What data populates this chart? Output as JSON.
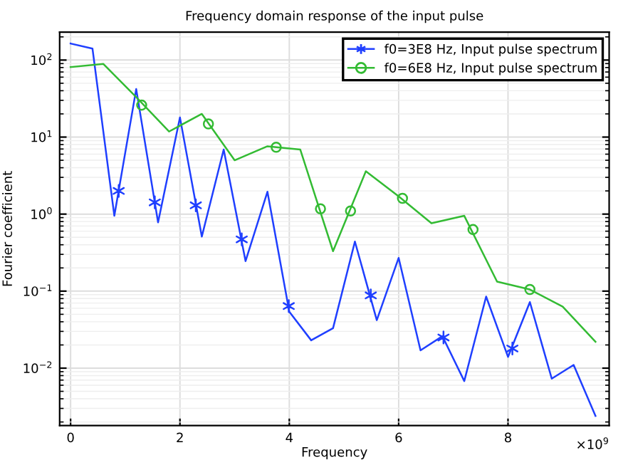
{
  "chart_data": {
    "type": "line",
    "title": "Frequency domain response of the input pulse",
    "xlabel": "Frequency",
    "ylabel": "Fourier coefficient",
    "log": "y",
    "grid": true,
    "legend": "top right",
    "xlim": [
      -0.2,
      9.85
    ],
    "xticks": [
      0,
      2,
      4,
      6,
      8
    ],
    "ylim": [
      0.0018,
      230
    ],
    "yticks": [
      {
        "value": 0.01,
        "label": "10$^{−2}$"
      },
      {
        "value": 0.1,
        "label": "10$^{−1}$"
      },
      {
        "value": 1,
        "label": "10$^{0}$"
      },
      {
        "value": 10,
        "label": "10$^{1}$"
      },
      {
        "value": 100,
        "label": "10$^{2}$"
      }
    ],
    "annotations": [
      "×10$^{9}$"
    ],
    "series": [
      {
        "name": "f0=3E8 Hz, Input pulse spectrum",
        "color": "#1f3fff",
        "x": [
          0,
          0.4,
          0.8,
          1.2,
          1.6,
          2.0,
          2.4,
          2.8,
          3.2,
          3.6,
          4.0,
          4.4,
          4.8,
          5.2,
          5.6,
          6.0,
          6.4,
          6.8,
          7.2,
          7.6,
          8.0,
          8.4,
          8.8,
          9.2,
          9.6
        ],
        "values": [
          164,
          141,
          0.95,
          42,
          0.78,
          18,
          0.51,
          6.9,
          0.245,
          1.95,
          0.054,
          0.023,
          0.033,
          0.44,
          0.042,
          0.27,
          0.017,
          0.026,
          0.0068,
          0.085,
          0.014,
          0.072,
          0.0073,
          0.011,
          0.0024
        ]
      },
      {
        "name": "f0=6E8 Hz, Input pulse spectrum",
        "color": "#33bb33",
        "x": [
          0,
          0.6,
          1.2,
          1.8,
          2.4,
          3.0,
          3.6,
          4.2,
          4.8,
          5.4,
          6.0,
          6.6,
          7.2,
          7.8,
          8.4,
          9.0,
          9.6
        ],
        "values": [
          81,
          89,
          33,
          11.8,
          20,
          5.0,
          7.6,
          6.9,
          0.33,
          3.6,
          1.7,
          0.76,
          0.95,
          0.133,
          0.105,
          0.063,
          0.022
        ]
      },
      {
        "type": "scatter",
        "marker": "cross",
        "color": "#1f3fff",
        "x": [
          0.88,
          1.54,
          2.29,
          3.13,
          3.99,
          5.49,
          6.82,
          8.08
        ],
        "values": [
          2.0,
          1.42,
          1.3,
          0.47,
          0.064,
          0.088,
          0.025,
          0.018
        ]
      },
      {
        "type": "scatter",
        "marker": "circle",
        "color": "#33bb33",
        "x": [
          1.3,
          2.52,
          3.76,
          4.57,
          5.12,
          6.07,
          7.36,
          8.4
        ],
        "values": [
          26,
          14.8,
          7.4,
          1.17,
          1.1,
          1.6,
          0.63,
          0.105
        ]
      }
    ]
  }
}
